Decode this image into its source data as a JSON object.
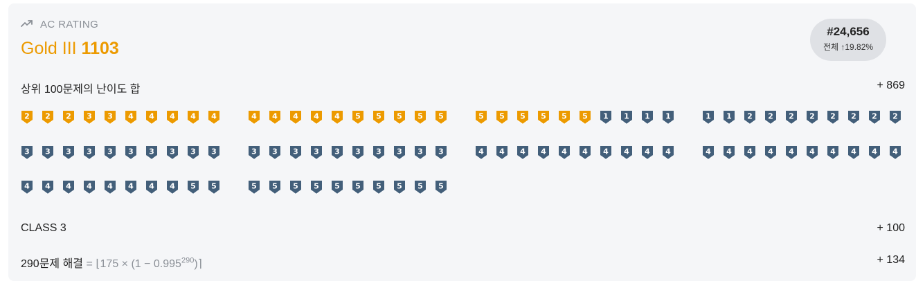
{
  "header": {
    "label": "AC RATING",
    "tier_name": "Gold III",
    "rating": "1103",
    "rank": "#24,656",
    "rank_sub": "전체 ↑19.82%"
  },
  "sections": {
    "top100_label": "상위 100문제의 난이도 합",
    "top100_value": "+ 869",
    "class_label": "CLASS 3",
    "class_value": "+ 100",
    "solved_label": "290문제 해결",
    "solved_formula": "= ⌊175 × (1 − 0.995",
    "solved_exp": "290",
    "solved_formula_end": ")⌉",
    "solved_value": "+ 134"
  },
  "colors": {
    "gold": "#ec9a00",
    "silver": "#435f7a",
    "accent_text": "#ec9a00"
  },
  "badges": [
    {
      "tier": "gold",
      "level": "2"
    },
    {
      "tier": "gold",
      "level": "2"
    },
    {
      "tier": "gold",
      "level": "2"
    },
    {
      "tier": "gold",
      "level": "3"
    },
    {
      "tier": "gold",
      "level": "3"
    },
    {
      "tier": "gold",
      "level": "4"
    },
    {
      "tier": "gold",
      "level": "4"
    },
    {
      "tier": "gold",
      "level": "4"
    },
    {
      "tier": "gold",
      "level": "4"
    },
    {
      "tier": "gold",
      "level": "4"
    },
    {
      "tier": "gold",
      "level": "4"
    },
    {
      "tier": "gold",
      "level": "4"
    },
    {
      "tier": "gold",
      "level": "4"
    },
    {
      "tier": "gold",
      "level": "4"
    },
    {
      "tier": "gold",
      "level": "4"
    },
    {
      "tier": "gold",
      "level": "5"
    },
    {
      "tier": "gold",
      "level": "5"
    },
    {
      "tier": "gold",
      "level": "5"
    },
    {
      "tier": "gold",
      "level": "5"
    },
    {
      "tier": "gold",
      "level": "5"
    },
    {
      "tier": "gold",
      "level": "5"
    },
    {
      "tier": "gold",
      "level": "5"
    },
    {
      "tier": "gold",
      "level": "5"
    },
    {
      "tier": "gold",
      "level": "5"
    },
    {
      "tier": "gold",
      "level": "5"
    },
    {
      "tier": "gold",
      "level": "5"
    },
    {
      "tier": "silver",
      "level": "1"
    },
    {
      "tier": "silver",
      "level": "1"
    },
    {
      "tier": "silver",
      "level": "1"
    },
    {
      "tier": "silver",
      "level": "1"
    },
    {
      "tier": "silver",
      "level": "1"
    },
    {
      "tier": "silver",
      "level": "1"
    },
    {
      "tier": "silver",
      "level": "2"
    },
    {
      "tier": "silver",
      "level": "2"
    },
    {
      "tier": "silver",
      "level": "2"
    },
    {
      "tier": "silver",
      "level": "2"
    },
    {
      "tier": "silver",
      "level": "2"
    },
    {
      "tier": "silver",
      "level": "2"
    },
    {
      "tier": "silver",
      "level": "2"
    },
    {
      "tier": "silver",
      "level": "2"
    },
    {
      "tier": "silver",
      "level": "3"
    },
    {
      "tier": "silver",
      "level": "3"
    },
    {
      "tier": "silver",
      "level": "3"
    },
    {
      "tier": "silver",
      "level": "3"
    },
    {
      "tier": "silver",
      "level": "3"
    },
    {
      "tier": "silver",
      "level": "3"
    },
    {
      "tier": "silver",
      "level": "3"
    },
    {
      "tier": "silver",
      "level": "3"
    },
    {
      "tier": "silver",
      "level": "3"
    },
    {
      "tier": "silver",
      "level": "3"
    },
    {
      "tier": "silver",
      "level": "3"
    },
    {
      "tier": "silver",
      "level": "3"
    },
    {
      "tier": "silver",
      "level": "3"
    },
    {
      "tier": "silver",
      "level": "3"
    },
    {
      "tier": "silver",
      "level": "3"
    },
    {
      "tier": "silver",
      "level": "3"
    },
    {
      "tier": "silver",
      "level": "3"
    },
    {
      "tier": "silver",
      "level": "3"
    },
    {
      "tier": "silver",
      "level": "3"
    },
    {
      "tier": "silver",
      "level": "3"
    },
    {
      "tier": "silver",
      "level": "4"
    },
    {
      "tier": "silver",
      "level": "4"
    },
    {
      "tier": "silver",
      "level": "4"
    },
    {
      "tier": "silver",
      "level": "4"
    },
    {
      "tier": "silver",
      "level": "4"
    },
    {
      "tier": "silver",
      "level": "4"
    },
    {
      "tier": "silver",
      "level": "4"
    },
    {
      "tier": "silver",
      "level": "4"
    },
    {
      "tier": "silver",
      "level": "4"
    },
    {
      "tier": "silver",
      "level": "4"
    },
    {
      "tier": "silver",
      "level": "4"
    },
    {
      "tier": "silver",
      "level": "4"
    },
    {
      "tier": "silver",
      "level": "4"
    },
    {
      "tier": "silver",
      "level": "4"
    },
    {
      "tier": "silver",
      "level": "4"
    },
    {
      "tier": "silver",
      "level": "4"
    },
    {
      "tier": "silver",
      "level": "4"
    },
    {
      "tier": "silver",
      "level": "4"
    },
    {
      "tier": "silver",
      "level": "4"
    },
    {
      "tier": "silver",
      "level": "4"
    },
    {
      "tier": "silver",
      "level": "4"
    },
    {
      "tier": "silver",
      "level": "4"
    },
    {
      "tier": "silver",
      "level": "4"
    },
    {
      "tier": "silver",
      "level": "4"
    },
    {
      "tier": "silver",
      "level": "4"
    },
    {
      "tier": "silver",
      "level": "4"
    },
    {
      "tier": "silver",
      "level": "4"
    },
    {
      "tier": "silver",
      "level": "4"
    },
    {
      "tier": "silver",
      "level": "5"
    },
    {
      "tier": "silver",
      "level": "5"
    },
    {
      "tier": "silver",
      "level": "5"
    },
    {
      "tier": "silver",
      "level": "5"
    },
    {
      "tier": "silver",
      "level": "5"
    },
    {
      "tier": "silver",
      "level": "5"
    },
    {
      "tier": "silver",
      "level": "5"
    },
    {
      "tier": "silver",
      "level": "5"
    },
    {
      "tier": "silver",
      "level": "5"
    },
    {
      "tier": "silver",
      "level": "5"
    },
    {
      "tier": "silver",
      "level": "5"
    },
    {
      "tier": "silver",
      "level": "5"
    }
  ]
}
